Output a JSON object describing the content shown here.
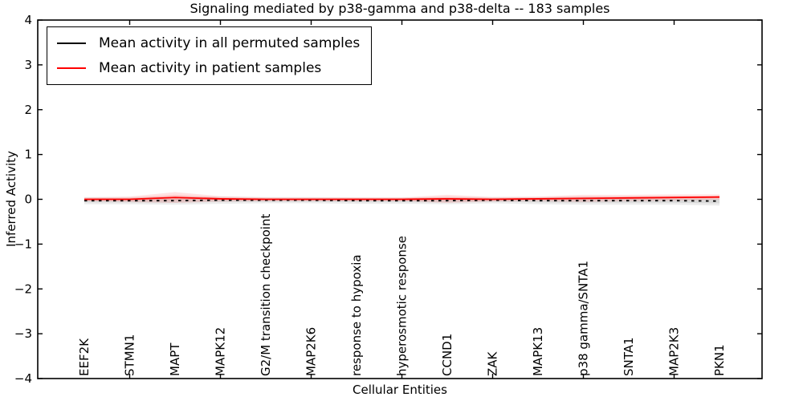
{
  "figure": {
    "title": "Signaling mediated by p38-gamma and p38-delta -- 183 samples",
    "background": "#ffffff"
  },
  "legend": {
    "entries": [
      {
        "label": "Mean activity in all permuted samples",
        "color": "#000000"
      },
      {
        "label": "Mean activity in patient samples",
        "color": "#ff0000"
      }
    ],
    "position": "upper left"
  },
  "chart_data": {
    "type": "line",
    "title": "Signaling mediated by p38-gamma and p38-delta -- 183 samples",
    "xlabel": "Cellular Entities",
    "ylabel": "Inferred Activity",
    "ylim": [
      -4,
      4
    ],
    "yticks": [
      4,
      3,
      2,
      1,
      0,
      -1,
      -2,
      -3,
      -4
    ],
    "ytick_labels": [
      "4",
      "3",
      "2",
      "1",
      "0",
      "−1",
      "−2",
      "−3",
      "−4"
    ],
    "grid": false,
    "legend_position": "upper left",
    "categories": [
      "EEF2K",
      "STMN1",
      "MAPT",
      "MAPK12",
      "G2/M transition checkpoint",
      "MAP2K6",
      "response to hypoxia",
      "hyperosmotic response",
      "CCND1",
      "ZAK",
      "MAPK13",
      "p38 gamma/SNTA1",
      "SNTA1",
      "MAP2K3",
      "PKN1"
    ],
    "x_major_tick_indices": [
      1,
      3,
      5,
      7,
      9,
      11,
      13
    ],
    "series": [
      {
        "name": "Mean activity in all permuted samples",
        "color": "#000000",
        "style": "dashed",
        "values": [
          -0.03,
          -0.03,
          -0.03,
          -0.02,
          -0.02,
          -0.02,
          -0.03,
          -0.03,
          -0.03,
          -0.02,
          -0.03,
          -0.03,
          -0.03,
          -0.03,
          -0.04
        ],
        "band": [
          0.08,
          0.08,
          0.09,
          0.08,
          0.07,
          0.07,
          0.07,
          0.07,
          0.08,
          0.07,
          0.08,
          0.09,
          0.09,
          0.09,
          0.1
        ],
        "band_color": "#aaaaaa"
      },
      {
        "name": "Mean activity in patient samples",
        "color": "#ff0000",
        "style": "solid",
        "values": [
          0.0,
          0.0,
          0.04,
          0.01,
          0.0,
          0.0,
          0.0,
          0.0,
          0.01,
          0.0,
          0.01,
          0.02,
          0.03,
          0.04,
          0.05
        ],
        "band": [
          0.04,
          0.06,
          0.12,
          0.06,
          0.04,
          0.04,
          0.04,
          0.04,
          0.09,
          0.05,
          0.05,
          0.08,
          0.07,
          0.07,
          0.06
        ],
        "band_color": "#ff8080"
      }
    ]
  }
}
